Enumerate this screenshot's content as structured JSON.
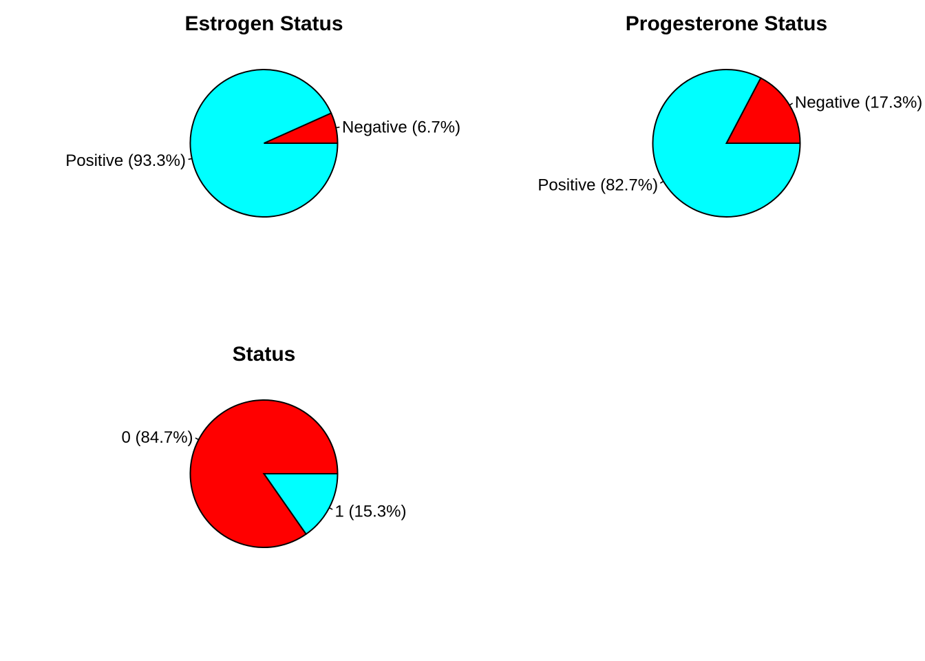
{
  "chart_data": [
    {
      "type": "pie",
      "title": "Estrogen Status",
      "slices": [
        {
          "label": "Negative (6.7%)",
          "category": "Negative",
          "value": 6.7,
          "color": "#ff0000"
        },
        {
          "label": "Positive (93.3%)",
          "category": "Positive",
          "value": 93.3,
          "color": "#00ffff"
        }
      ],
      "start_angle_deg": 0,
      "direction": "counterclockwise"
    },
    {
      "type": "pie",
      "title": "Progesterone Status",
      "slices": [
        {
          "label": "Negative (17.3%)",
          "category": "Negative",
          "value": 17.3,
          "color": "#ff0000"
        },
        {
          "label": "Positive (82.7%)",
          "category": "Positive",
          "value": 82.7,
          "color": "#00ffff"
        }
      ],
      "start_angle_deg": 0,
      "direction": "counterclockwise"
    },
    {
      "type": "pie",
      "title": "Status",
      "slices": [
        {
          "label": "0 (84.7%)",
          "category": "0",
          "value": 84.7,
          "color": "#ff0000"
        },
        {
          "label": "1 (15.3%)",
          "category": "1",
          "value": 15.3,
          "color": "#00ffff"
        }
      ],
      "start_angle_deg": 0,
      "direction": "counterclockwise"
    }
  ]
}
